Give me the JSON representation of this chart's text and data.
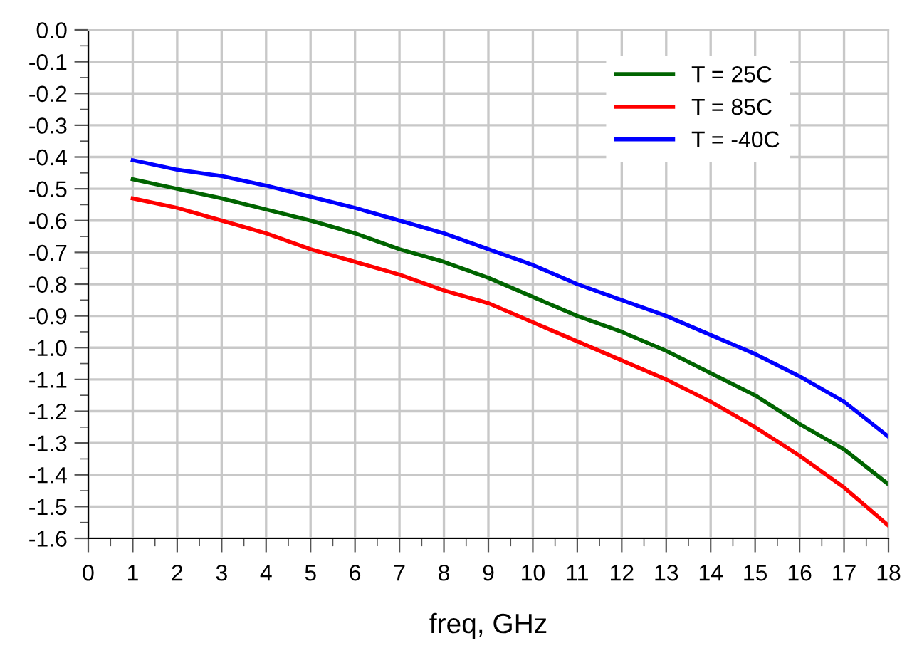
{
  "chart_data": {
    "type": "line",
    "xlabel": "freq, GHz",
    "x": [
      1,
      2,
      3,
      4,
      5,
      6,
      7,
      8,
      9,
      10,
      11,
      12,
      13,
      14,
      15,
      16,
      17,
      18
    ],
    "series": [
      {
        "name": "T = 25C",
        "color": "#006400",
        "values": [
          -0.47,
          -0.5,
          -0.53,
          -0.565,
          -0.6,
          -0.64,
          -0.69,
          -0.73,
          -0.78,
          -0.84,
          -0.9,
          -0.95,
          -1.01,
          -1.08,
          -1.15,
          -1.24,
          -1.32,
          -1.43
        ]
      },
      {
        "name": "T = 85C",
        "color": "#ff0000",
        "values": [
          -0.53,
          -0.56,
          -0.6,
          -0.64,
          -0.69,
          -0.73,
          -0.77,
          -0.82,
          -0.86,
          -0.92,
          -0.98,
          -1.04,
          -1.1,
          -1.17,
          -1.25,
          -1.34,
          -1.44,
          -1.56
        ]
      },
      {
        "name": "T = -40C",
        "color": "#0000ff",
        "values": [
          -0.41,
          -0.44,
          -0.46,
          -0.49,
          -0.525,
          -0.56,
          -0.6,
          -0.64,
          -0.69,
          -0.74,
          -0.8,
          -0.85,
          -0.9,
          -0.96,
          -1.02,
          -1.09,
          -1.17,
          -1.28
        ]
      }
    ],
    "xlim": [
      0,
      18
    ],
    "xticks": [
      0,
      1,
      2,
      3,
      4,
      5,
      6,
      7,
      8,
      9,
      10,
      11,
      12,
      13,
      14,
      15,
      16,
      17,
      18
    ],
    "ylim": [
      -1.6,
      0.0
    ],
    "yticks": [
      {
        "value": 0.0,
        "label": "0.0"
      },
      -0.1,
      -0.2,
      -0.3,
      -0.4,
      -0.5,
      -0.6,
      -0.7,
      -0.8,
      -0.9,
      {
        "value": -1.0,
        "label": "-1.0"
      },
      -1.1,
      -1.2,
      -1.3,
      -1.4,
      -1.5,
      -1.6
    ],
    "grid": true,
    "legend": "top right",
    "marker": "none",
    "line_style": "solid"
  }
}
